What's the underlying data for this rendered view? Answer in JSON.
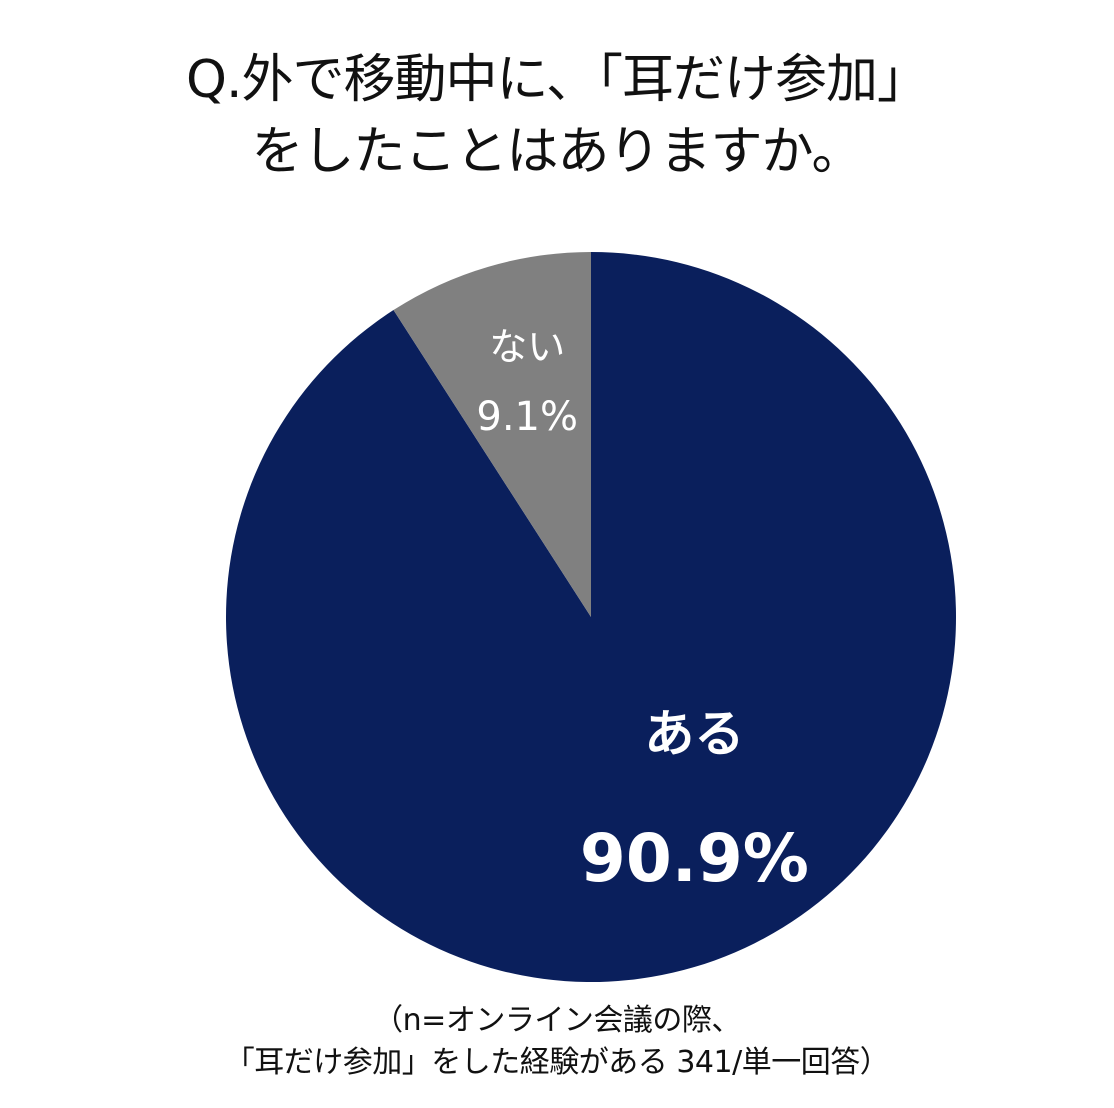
{
  "title": {
    "line1": "Q.外で移動中に、「耳だけ参加」",
    "line2": "をしたことはありますか。"
  },
  "chart_data": {
    "type": "pie",
    "start": "12 o'clock",
    "direction": "clockwise",
    "slices": [
      {
        "label": "ある",
        "value": 90.9,
        "value_label": "90.9%",
        "color": "#0a1f5c"
      },
      {
        "label": "ない",
        "value": 9.1,
        "value_label": "9.1%",
        "color": "#808080"
      }
    ]
  },
  "note": {
    "line1": "（n=オンライン会議の際、",
    "line2": "「耳だけ参加」をした経験がある 341/単一回答）"
  }
}
